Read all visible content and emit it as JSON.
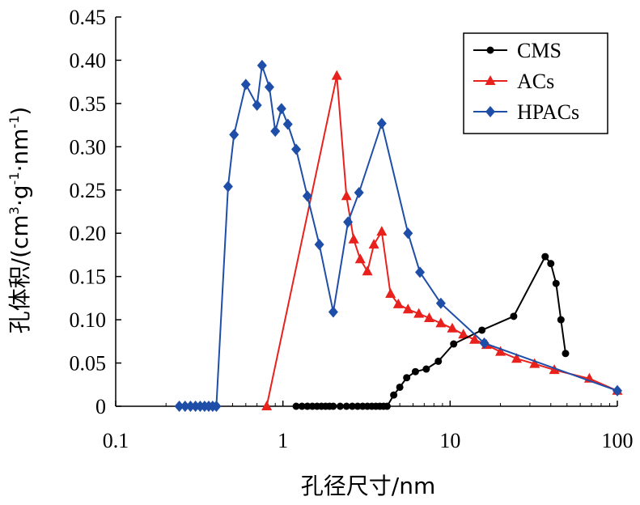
{
  "chart_data": {
    "type": "line",
    "xscale": "log",
    "xlim": [
      0.1,
      100
    ],
    "ylim": [
      0,
      0.45
    ],
    "xticks": [
      {
        "value": 0.1,
        "label": "0.1"
      },
      {
        "value": 1,
        "label": "1"
      },
      {
        "value": 10,
        "label": "10"
      },
      {
        "value": 100,
        "label": "100"
      }
    ],
    "yticks": [
      {
        "value": 0,
        "label": "0"
      },
      {
        "value": 0.05,
        "label": "0.05"
      },
      {
        "value": 0.1,
        "label": "0.10"
      },
      {
        "value": 0.15,
        "label": "0.15"
      },
      {
        "value": 0.2,
        "label": "0.20"
      },
      {
        "value": 0.25,
        "label": "0.25"
      },
      {
        "value": 0.3,
        "label": "0.30"
      },
      {
        "value": 0.35,
        "label": "0.35"
      },
      {
        "value": 0.4,
        "label": "0.40"
      },
      {
        "value": 0.45,
        "label": "0.45"
      }
    ],
    "xlabel": "孔径尺寸/nm",
    "ylabel": {
      "prefix": "孔体积/(cm",
      "sup1": "3",
      "mid1": "·g",
      "sup2": "-1",
      "mid2": "·nm",
      "sup3": "-1",
      "suffix": ")"
    },
    "grid": false,
    "legend_position": "top-right",
    "series": [
      {
        "name": "CMS",
        "color": "#000000",
        "marker": "circle",
        "points": [
          [
            1.2,
            0
          ],
          [
            1.3,
            0
          ],
          [
            1.4,
            0
          ],
          [
            1.5,
            0
          ],
          [
            1.6,
            0
          ],
          [
            1.7,
            0
          ],
          [
            1.8,
            0
          ],
          [
            1.9,
            0
          ],
          [
            2.0,
            0
          ],
          [
            2.2,
            0
          ],
          [
            2.4,
            0
          ],
          [
            2.6,
            0
          ],
          [
            2.8,
            0
          ],
          [
            3.0,
            0
          ],
          [
            3.2,
            0
          ],
          [
            3.4,
            0
          ],
          [
            3.6,
            0
          ],
          [
            3.8,
            0
          ],
          [
            4.0,
            0
          ],
          [
            4.2,
            0
          ],
          [
            4.6,
            0.013
          ],
          [
            5.0,
            0.022
          ],
          [
            5.5,
            0.033
          ],
          [
            6.2,
            0.04
          ],
          [
            7.2,
            0.043
          ],
          [
            8.5,
            0.052
          ],
          [
            10.5,
            0.072
          ],
          [
            15.5,
            0.088
          ],
          [
            24,
            0.104
          ],
          [
            37,
            0.173
          ],
          [
            40,
            0.165
          ],
          [
            43,
            0.142
          ],
          [
            46,
            0.1
          ],
          [
            49,
            0.061
          ]
        ]
      },
      {
        "name": "ACs",
        "color": "#e8211d",
        "marker": "triangle",
        "points": [
          [
            0.8,
            0
          ],
          [
            2.1,
            0.382
          ],
          [
            2.4,
            0.243
          ],
          [
            2.65,
            0.193
          ],
          [
            2.9,
            0.17
          ],
          [
            3.2,
            0.156
          ],
          [
            3.5,
            0.187
          ],
          [
            3.9,
            0.202
          ],
          [
            4.4,
            0.13
          ],
          [
            4.9,
            0.118
          ],
          [
            5.6,
            0.112
          ],
          [
            6.5,
            0.107
          ],
          [
            7.5,
            0.102
          ],
          [
            8.8,
            0.096
          ],
          [
            10.3,
            0.09
          ],
          [
            12,
            0.083
          ],
          [
            14,
            0.077
          ],
          [
            16.5,
            0.071
          ],
          [
            20,
            0.063
          ],
          [
            25,
            0.055
          ],
          [
            32,
            0.049
          ],
          [
            42,
            0.042
          ],
          [
            68,
            0.032
          ],
          [
            100,
            0.018
          ]
        ]
      },
      {
        "name": "HPACs",
        "color": "#1f4ea8",
        "marker": "diamond",
        "points": [
          [
            0.24,
            0
          ],
          [
            0.26,
            0
          ],
          [
            0.28,
            0
          ],
          [
            0.3,
            0
          ],
          [
            0.32,
            0
          ],
          [
            0.34,
            0
          ],
          [
            0.36,
            0
          ],
          [
            0.38,
            0
          ],
          [
            0.4,
            0
          ],
          [
            0.47,
            0.254
          ],
          [
            0.51,
            0.314
          ],
          [
            0.6,
            0.372
          ],
          [
            0.7,
            0.348
          ],
          [
            0.75,
            0.394
          ],
          [
            0.83,
            0.369
          ],
          [
            0.9,
            0.318
          ],
          [
            0.98,
            0.344
          ],
          [
            1.07,
            0.326
          ],
          [
            1.2,
            0.297
          ],
          [
            1.4,
            0.243
          ],
          [
            1.65,
            0.187
          ],
          [
            2.0,
            0.109
          ],
          [
            2.45,
            0.213
          ],
          [
            2.85,
            0.247
          ],
          [
            3.9,
            0.327
          ],
          [
            5.6,
            0.2
          ],
          [
            6.6,
            0.155
          ],
          [
            8.8,
            0.119
          ],
          [
            16,
            0.073
          ],
          [
            100,
            0.018
          ]
        ]
      }
    ]
  }
}
